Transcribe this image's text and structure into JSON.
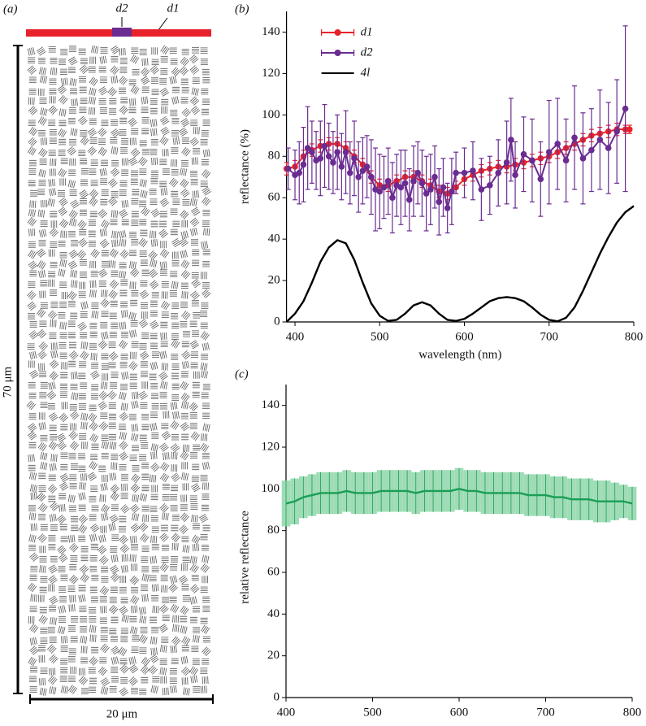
{
  "panel_a": {
    "label": "(a)",
    "bar_labels": [
      "d2",
      "d1"
    ],
    "scale_y": "70 μm",
    "scale_x": "20 μm"
  },
  "chart_data": [
    {
      "type": "line",
      "panel_label": "(b)",
      "x_label": "wavelength (nm)",
      "y_label": "reflectance (%)",
      "xlim": [
        390,
        800
      ],
      "ylim": [
        0,
        150
      ],
      "xticks": [
        400,
        500,
        600,
        700,
        800
      ],
      "yticks": [
        0,
        20,
        40,
        60,
        80,
        100,
        120,
        140
      ],
      "series": [
        {
          "name": "d1",
          "color": "#e8222a",
          "marker": true,
          "x": [
            390,
            400,
            410,
            420,
            430,
            440,
            450,
            460,
            470,
            480,
            490,
            500,
            510,
            520,
            530,
            540,
            550,
            560,
            570,
            580,
            590,
            600,
            610,
            620,
            630,
            640,
            650,
            660,
            670,
            680,
            690,
            700,
            710,
            720,
            730,
            740,
            750,
            760,
            770,
            780,
            790,
            795
          ],
          "values": [
            74,
            75,
            80,
            83,
            85,
            86,
            86,
            84,
            80,
            76,
            70,
            66,
            66,
            68,
            70,
            70,
            68,
            66,
            63,
            62,
            65,
            69,
            71,
            73,
            74,
            75,
            75,
            76,
            77,
            78,
            79,
            80,
            82,
            84,
            86,
            88,
            90,
            91,
            92,
            93,
            93,
            93
          ],
          "errors": [
            3,
            3,
            3,
            3,
            3,
            3,
            3,
            3,
            3,
            3,
            3,
            3,
            3,
            3,
            3,
            3,
            3,
            3,
            3,
            3,
            3,
            3,
            3,
            3,
            3,
            3,
            3,
            3,
            3,
            3,
            3,
            3,
            3,
            3,
            3,
            3,
            3,
            3,
            3,
            3,
            2,
            2
          ]
        },
        {
          "name": "d2",
          "color": "#6a2c91",
          "marker": true,
          "x": [
            392,
            400,
            405,
            410,
            415,
            420,
            425,
            430,
            435,
            440,
            445,
            450,
            455,
            460,
            465,
            470,
            475,
            480,
            485,
            490,
            495,
            500,
            505,
            510,
            515,
            520,
            525,
            530,
            535,
            540,
            545,
            550,
            555,
            560,
            565,
            570,
            575,
            580,
            585,
            590,
            600,
            610,
            620,
            630,
            640,
            650,
            655,
            660,
            670,
            680,
            690,
            700,
            710,
            720,
            730,
            740,
            750,
            760,
            770,
            780,
            790
          ],
          "values": [
            74,
            71,
            72,
            76,
            84,
            82,
            78,
            79,
            85,
            80,
            77,
            82,
            75,
            82,
            72,
            79,
            70,
            73,
            75,
            70,
            64,
            63,
            65,
            68,
            60,
            66,
            65,
            67,
            59,
            68,
            72,
            67,
            62,
            64,
            70,
            58,
            65,
            55,
            63,
            72,
            72,
            73,
            64,
            66,
            72,
            77,
            88,
            71,
            81,
            78,
            69,
            82,
            86,
            78,
            89,
            79,
            83,
            88,
            84,
            92,
            103
          ],
          "errors": [
            10,
            12,
            15,
            18,
            20,
            15,
            14,
            18,
            20,
            16,
            15,
            18,
            16,
            20,
            15,
            18,
            17,
            16,
            15,
            18,
            20,
            18,
            15,
            16,
            17,
            15,
            18,
            16,
            15,
            17,
            15,
            16,
            18,
            17,
            15,
            16,
            14,
            12,
            16,
            10,
            12,
            14,
            15,
            14,
            16,
            20,
            20,
            16,
            18,
            20,
            18,
            25,
            22,
            20,
            25,
            22,
            20,
            24,
            22,
            25,
            40
          ]
        },
        {
          "name": "4l",
          "color": "#000000",
          "marker": false,
          "x": [
            390,
            400,
            410,
            420,
            430,
            440,
            450,
            460,
            470,
            480,
            490,
            500,
            510,
            520,
            530,
            540,
            550,
            560,
            570,
            580,
            590,
            600,
            610,
            620,
            630,
            640,
            650,
            660,
            670,
            680,
            690,
            700,
            710,
            720,
            730,
            740,
            750,
            760,
            770,
            780,
            790,
            800
          ],
          "values": [
            0,
            4,
            10,
            19,
            29,
            36,
            39.5,
            38,
            30,
            19,
            9,
            3,
            0.5,
            1,
            4,
            8,
            9.5,
            8,
            4,
            1,
            0.5,
            1.5,
            4,
            7,
            10,
            11.5,
            12,
            11.5,
            10,
            7,
            3.5,
            1,
            0.3,
            2,
            7,
            15,
            24,
            33,
            41,
            48,
            53,
            56
          ]
        }
      ]
    },
    {
      "type": "line",
      "panel_label": "(c)",
      "y_label": "relative reflectance",
      "xlim": [
        400,
        800
      ],
      "ylim": [
        0,
        150
      ],
      "xticks": [
        400,
        500,
        600,
        700,
        800
      ],
      "yticks": [
        0,
        20,
        40,
        60,
        80,
        100,
        120,
        140
      ],
      "series": [
        {
          "color": "#1a9e55",
          "band_color": "#9fdcb6",
          "marker": false,
          "x": [
            400,
            410,
            420,
            430,
            440,
            450,
            460,
            470,
            480,
            490,
            500,
            510,
            520,
            530,
            540,
            550,
            560,
            570,
            580,
            590,
            600,
            610,
            620,
            630,
            640,
            650,
            660,
            670,
            680,
            690,
            700,
            710,
            720,
            730,
            740,
            750,
            760,
            770,
            780,
            790,
            800
          ],
          "values": [
            93,
            94,
            96,
            97,
            98,
            98,
            98,
            99,
            98,
            98,
            98,
            99,
            99,
            99,
            99,
            98,
            99,
            99,
            99,
            99,
            100,
            99,
            99,
            98,
            98,
            98,
            98,
            98,
            97,
            97,
            97,
            96,
            96,
            95,
            95,
            95,
            94,
            94,
            94,
            94,
            93
          ],
          "errors": [
            11,
            11,
            10,
            10,
            10,
            10,
            10,
            10,
            10,
            10,
            10,
            10,
            10,
            10,
            10,
            10,
            10,
            10,
            10,
            10,
            10,
            10,
            10,
            10,
            10,
            10,
            10,
            10,
            10,
            10,
            10,
            10,
            10,
            10,
            10,
            10,
            10,
            10,
            9,
            8,
            8
          ]
        }
      ]
    }
  ]
}
